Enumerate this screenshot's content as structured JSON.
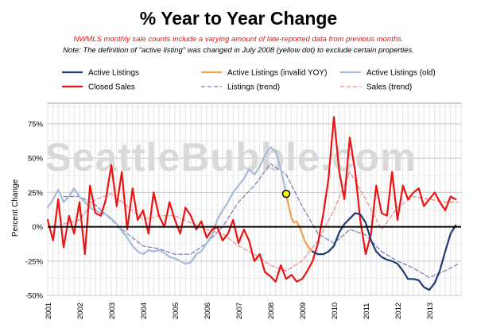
{
  "watermark": "SeattleBubble.com",
  "chart_data": {
    "type": "line",
    "title": "% Year to Year Change",
    "notes": [
      "NWMLS monthly sale counts include a varying amount of late-reported  data from previous months.",
      "Note: The definition of \"active listing\" was changed in July 2008 (yellow dot) to exclude certain properties."
    ],
    "xlabel": "",
    "ylabel": "Percent Change",
    "xlim": [
      2001,
      2014
    ],
    "ylim": [
      -50,
      90
    ],
    "x_ticks": [
      "2001",
      "2002",
      "2003",
      "2004",
      "2005",
      "2006",
      "2007",
      "2008",
      "2009",
      "2010",
      "2011",
      "2012",
      "2013"
    ],
    "y_ticks": [
      "75%",
      "50%",
      "25%",
      "0%",
      "-25%",
      "-50%"
    ],
    "y_tick_values": [
      75,
      50,
      25,
      0,
      -25,
      -50
    ],
    "grid": true,
    "legend_position": "top",
    "marker": {
      "label": "July 2008",
      "x": 2008.5,
      "y": 24,
      "color": "#ffff00"
    },
    "series": [
      {
        "name": "Active Listings",
        "color": "#1f3a75",
        "style": "solid",
        "x": [
          2009.33,
          2009.5,
          2009.67,
          2009.83,
          2010.0,
          2010.17,
          2010.33,
          2010.5,
          2010.67,
          2010.83,
          2011.0,
          2011.17,
          2011.33,
          2011.5,
          2011.67,
          2011.83,
          2012.0,
          2012.17,
          2012.33,
          2012.5,
          2012.67,
          2012.83,
          2013.0,
          2013.17,
          2013.33,
          2013.5,
          2013.67,
          2013.83
        ],
        "y": [
          -18,
          -20,
          -20,
          -18,
          -14,
          -4,
          2,
          6,
          10,
          9,
          3,
          -10,
          -18,
          -22,
          -24,
          -25,
          -27,
          -32,
          -38,
          -38,
          -39,
          -44,
          -46,
          -41,
          -32,
          -18,
          -5,
          1
        ]
      },
      {
        "name": "Active Listings (invalid YOY)",
        "color": "#f0a050",
        "style": "solid",
        "x": [
          2008.5,
          2008.58,
          2008.67,
          2008.75,
          2008.83,
          2008.92,
          2009.0,
          2009.08,
          2009.17,
          2009.25,
          2009.33
        ],
        "y": [
          24,
          15,
          6,
          3,
          4,
          0,
          -5,
          -10,
          -14,
          -16,
          -18
        ]
      },
      {
        "name": "Active Listings (old)",
        "color": "#a5bcd9",
        "style": "solid",
        "x": [
          2001.0,
          2001.17,
          2001.33,
          2001.5,
          2001.67,
          2001.83,
          2002.0,
          2002.17,
          2002.33,
          2002.5,
          2002.67,
          2002.83,
          2003.0,
          2003.17,
          2003.33,
          2003.5,
          2003.67,
          2003.83,
          2004.0,
          2004.17,
          2004.33,
          2004.5,
          2004.67,
          2004.83,
          2005.0,
          2005.17,
          2005.33,
          2005.5,
          2005.67,
          2005.83,
          2006.0,
          2006.17,
          2006.33,
          2006.5,
          2006.67,
          2006.83,
          2007.0,
          2007.17,
          2007.33,
          2007.5,
          2007.67,
          2007.83,
          2008.0,
          2008.17,
          2008.33,
          2008.5
        ],
        "y": [
          14,
          20,
          27,
          18,
          22,
          28,
          22,
          18,
          14,
          12,
          10,
          9,
          6,
          2,
          -3,
          -8,
          -14,
          -18,
          -20,
          -17,
          -18,
          -17,
          -19,
          -22,
          -23,
          -25,
          -27,
          -26,
          -20,
          -18,
          -12,
          -6,
          5,
          12,
          18,
          25,
          30,
          35,
          42,
          38,
          44,
          52,
          58,
          55,
          42,
          24
        ]
      },
      {
        "name": "Closed Sales",
        "color": "#ee1111",
        "style": "solid",
        "x": [
          2001.0,
          2001.17,
          2001.33,
          2001.5,
          2001.67,
          2001.83,
          2002.0,
          2002.17,
          2002.33,
          2002.5,
          2002.67,
          2002.83,
          2003.0,
          2003.17,
          2003.33,
          2003.5,
          2003.67,
          2003.83,
          2004.0,
          2004.17,
          2004.33,
          2004.5,
          2004.67,
          2004.83,
          2005.0,
          2005.17,
          2005.33,
          2005.5,
          2005.67,
          2005.83,
          2006.0,
          2006.17,
          2006.33,
          2006.5,
          2006.67,
          2006.83,
          2007.0,
          2007.17,
          2007.33,
          2007.5,
          2007.67,
          2007.83,
          2008.0,
          2008.17,
          2008.33,
          2008.5,
          2008.67,
          2008.83,
          2009.0,
          2009.17,
          2009.33,
          2009.5,
          2009.67,
          2009.83,
          2010.0,
          2010.17,
          2010.33,
          2010.5,
          2010.67,
          2010.83,
          2011.0,
          2011.17,
          2011.33,
          2011.5,
          2011.67,
          2011.83,
          2012.0,
          2012.17,
          2012.33,
          2012.5,
          2012.67,
          2012.83,
          2013.0,
          2013.17,
          2013.33,
          2013.5,
          2013.67,
          2013.83
        ],
        "y": [
          5,
          -10,
          20,
          -15,
          8,
          -5,
          18,
          -20,
          30,
          10,
          8,
          20,
          45,
          15,
          40,
          -2,
          28,
          5,
          12,
          -5,
          25,
          8,
          0,
          18,
          5,
          -5,
          14,
          8,
          -2,
          4,
          -8,
          -2,
          0,
          -10,
          -5,
          5,
          -12,
          -2,
          -10,
          -25,
          -20,
          -33,
          -36,
          -40,
          -28,
          -38,
          -35,
          -40,
          -38,
          -32,
          -25,
          -12,
          10,
          35,
          80,
          40,
          20,
          65,
          40,
          5,
          -20,
          -5,
          30,
          10,
          8,
          40,
          5,
          30,
          20,
          25,
          28,
          15,
          20,
          25,
          18,
          12,
          22,
          20
        ]
      },
      {
        "name": "Listings (trend)",
        "color": "#7777bb",
        "style": "dashed",
        "x": [
          2001.5,
          2002.0,
          2002.5,
          2003.0,
          2003.5,
          2004.0,
          2004.5,
          2005.0,
          2005.5,
          2006.0,
          2006.5,
          2007.0,
          2007.5,
          2008.0,
          2008.5,
          2009.0,
          2009.5,
          2010.0,
          2010.5,
          2011.0,
          2011.5,
          2012.0,
          2012.5,
          2013.0,
          2013.5,
          2013.92
        ],
        "y": [
          22,
          22,
          16,
          5,
          -5,
          -14,
          -16,
          -20,
          -20,
          -12,
          0,
          18,
          30,
          46,
          38,
          15,
          -5,
          -12,
          -2,
          -6,
          -18,
          -25,
          -30,
          -37,
          -32,
          -27
        ]
      },
      {
        "name": "Sales (trend)",
        "color": "#ee8888",
        "style": "dashed",
        "x": [
          2001.5,
          2002.0,
          2002.5,
          2003.0,
          2003.5,
          2004.0,
          2004.5,
          2005.0,
          2005.5,
          2006.0,
          2006.5,
          2007.0,
          2007.5,
          2008.0,
          2008.5,
          2009.0,
          2009.5,
          2010.0,
          2010.5,
          2011.0,
          2011.5,
          2012.0,
          2012.5,
          2013.0,
          2013.5,
          2013.92
        ],
        "y": [
          2,
          5,
          20,
          24,
          15,
          5,
          8,
          8,
          3,
          -2,
          -5,
          -14,
          -20,
          -28,
          -32,
          -25,
          -10,
          12,
          40,
          20,
          -2,
          14,
          22,
          20,
          18,
          18
        ]
      }
    ]
  }
}
